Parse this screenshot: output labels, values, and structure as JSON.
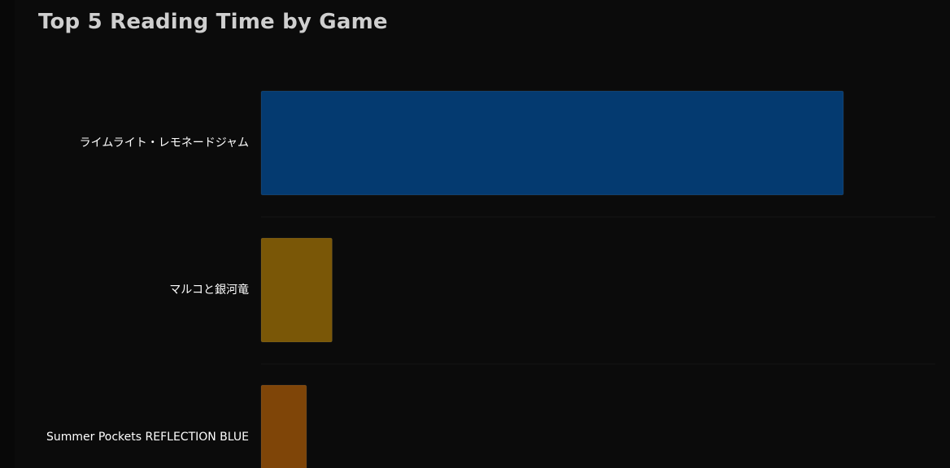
{
  "title": "Top 5 Reading Time by Game",
  "chart_data": {
    "type": "bar",
    "orientation": "horizontal",
    "title": "Top 5 Reading Time by Game",
    "categories": [
      "ライムライト・レモネードジャム",
      "マルコと銀河竜",
      "Summer Pockets REFLECTION BLUE"
    ],
    "values": [
      100,
      12.2,
      7.8
    ],
    "bar_colors": [
      "#043a70",
      "#7a5707",
      "#7f4508"
    ],
    "grid": true,
    "legend": "none"
  }
}
